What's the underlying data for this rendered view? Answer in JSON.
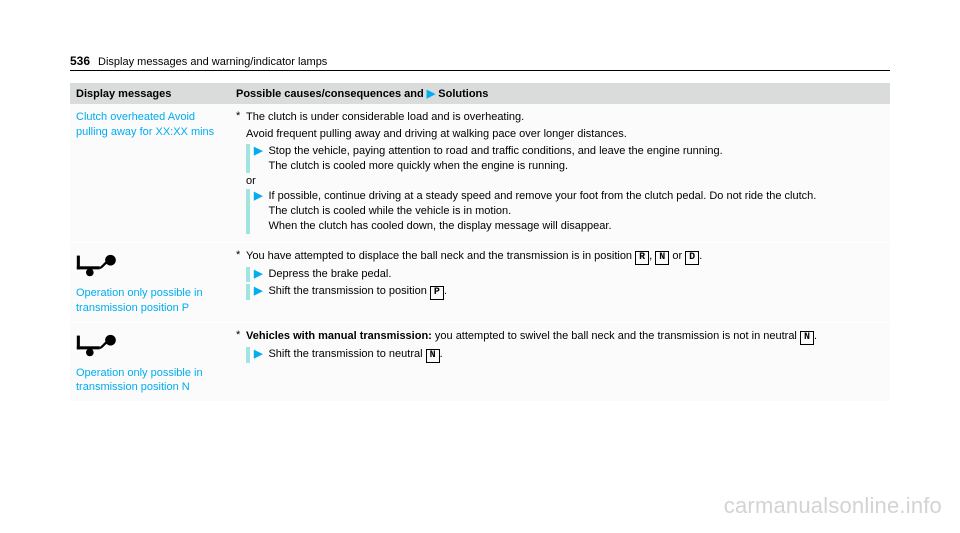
{
  "header": {
    "page_num": "536",
    "title": "Display messages and warning/indicator lamps"
  },
  "table": {
    "head": {
      "col1": "Display messages",
      "col2_a": "Possible causes/consequences and ",
      "col2_b": "Solutions"
    },
    "rows": [
      {
        "display": "Clutch overheated Avoid pulling away for XX:XX mins",
        "has_icon": false,
        "cause_intro": "The clutch is under considerable load and is overheating.",
        "cause_line2": "Avoid frequent pulling away and driving at walking pace over longer distances.",
        "actions_a": [
          {
            "lines": [
              "Stop the vehicle, paying attention to road and traffic conditions, and leave the engine running.",
              "The clutch is cooled more quickly when the engine is running."
            ]
          }
        ],
        "or": "or",
        "actions_b": [
          {
            "lines": [
              "If possible, continue driving at a steady speed and remove your foot from the clutch pedal. Do not ride the clutch.",
              "The clutch is cooled while the vehicle is in motion.",
              "When the clutch has cooled down, the display message will disappear."
            ]
          }
        ]
      },
      {
        "display": "Operation only possible in transmission position P",
        "has_icon": true,
        "cause_html_parts": [
          "You have attempted to displace the ball neck and the transmission is in position ",
          "R",
          ", ",
          "N",
          " or ",
          "D",
          "."
        ],
        "actions_a": [
          {
            "lines": [
              "Depress the brake pedal."
            ]
          },
          {
            "html_parts": [
              "Shift the transmission to position ",
              "P",
              "."
            ]
          }
        ]
      },
      {
        "display": "Operation only possible in transmission position N",
        "has_icon": true,
        "cause_bold": "Vehicles with manual transmission:",
        "cause_rest_parts": [
          " you attempted to swivel the ball neck and the transmission is not in neutral ",
          "N",
          "."
        ],
        "actions_a": [
          {
            "html_parts": [
              "Shift the transmission to neutral ",
              "N",
              "."
            ]
          }
        ]
      }
    ]
  },
  "watermark": "carmanualsonline.info",
  "colors": {
    "link": "#00adef",
    "action_bar": "#a0e5df",
    "header_bg": "#d9dcdb"
  }
}
